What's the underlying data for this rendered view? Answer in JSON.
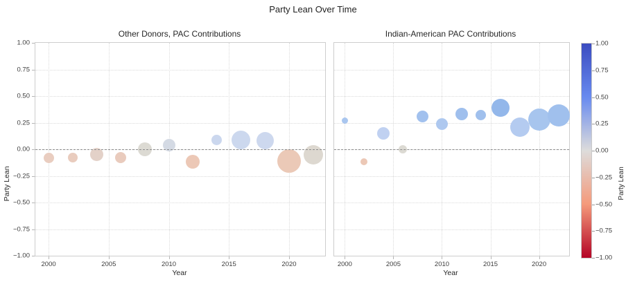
{
  "figure": {
    "title": "Party Lean Over Time"
  },
  "chart_data": [
    {
      "type": "scatter",
      "title": "Other Donors, PAC Contributions",
      "xlabel": "Year",
      "ylabel": "Party Lean",
      "xlim": [
        1998.9,
        2023.0
      ],
      "ylim": [
        -1.0,
        1.0
      ],
      "grid": true,
      "legend": "none",
      "zero_line_y": 0,
      "xticks": {
        "values": [
          2000,
          2005,
          2010,
          2015,
          2020
        ],
        "labels": [
          "2000",
          "2005",
          "2010",
          "2015",
          "2020"
        ]
      },
      "yticks": {
        "values": [
          1.0,
          0.75,
          0.5,
          0.25,
          0.0,
          -0.25,
          -0.5,
          -0.75,
          -1.0
        ],
        "labels": [
          "1.00",
          "0.75",
          "0.50",
          "0.25",
          "0.00",
          "−0.25",
          "−0.50",
          "−0.75",
          "−1.00"
        ]
      },
      "show_ytick_labels": true,
      "points": [
        {
          "x": 2000,
          "y": -0.08,
          "r": 7.5,
          "color": "#e9cdc0"
        },
        {
          "x": 2002,
          "y": -0.08,
          "r": 7.0,
          "color": "#e9ccbe"
        },
        {
          "x": 2004,
          "y": -0.05,
          "r": 9.5,
          "color": "#e3d1c8"
        },
        {
          "x": 2006,
          "y": -0.08,
          "r": 8.0,
          "color": "#e9cbbd"
        },
        {
          "x": 2008,
          "y": 0.0,
          "r": 10.0,
          "color": "#dcdad3"
        },
        {
          "x": 2010,
          "y": 0.04,
          "r": 9.0,
          "color": "#d4dae4"
        },
        {
          "x": 2012,
          "y": -0.12,
          "r": 10.0,
          "color": "#ecc8b6"
        },
        {
          "x": 2014,
          "y": 0.09,
          "r": 7.5,
          "color": "#cbd7ee"
        },
        {
          "x": 2016,
          "y": 0.09,
          "r": 13.5,
          "color": "#ccd8ee"
        },
        {
          "x": 2018,
          "y": 0.08,
          "r": 12.5,
          "color": "#cdd8ee"
        },
        {
          "x": 2020,
          "y": -0.11,
          "r": 17.0,
          "color": "#ebc9b7"
        },
        {
          "x": 2022,
          "y": -0.05,
          "r": 14.0,
          "color": "#ddd8d0"
        }
      ]
    },
    {
      "type": "scatter",
      "title": "Indian-American PAC Contributions",
      "xlabel": "Year",
      "ylabel": "",
      "xlim": [
        1998.9,
        2023.1
      ],
      "ylim": [
        -1.0,
        1.0
      ],
      "grid": true,
      "legend": "none",
      "zero_line_y": 0,
      "xticks": {
        "values": [
          2000,
          2005,
          2010,
          2015,
          2020
        ],
        "labels": [
          "2000",
          "2005",
          "2010",
          "2015",
          "2020"
        ]
      },
      "yticks": {
        "values": [
          1.0,
          0.75,
          0.5,
          0.25,
          0.0,
          -0.25,
          -0.5,
          -0.75,
          -1.0
        ],
        "labels": [
          "1.00",
          "0.75",
          "0.50",
          "0.25",
          "0.00",
          "−0.25",
          "−0.50",
          "−0.75",
          "−1.00"
        ]
      },
      "show_ytick_labels": false,
      "points": [
        {
          "x": 2000,
          "y": 0.27,
          "r": 4.5,
          "color": "#a9c6ef"
        },
        {
          "x": 2002,
          "y": -0.12,
          "r": 5.0,
          "color": "#ecc8b6"
        },
        {
          "x": 2004,
          "y": 0.15,
          "r": 9.0,
          "color": "#c0d1f1"
        },
        {
          "x": 2006,
          "y": 0.0,
          "r": 6.0,
          "color": "#dcdad3"
        },
        {
          "x": 2008,
          "y": 0.31,
          "r": 8.5,
          "color": "#a2c1ee"
        },
        {
          "x": 2010,
          "y": 0.24,
          "r": 8.5,
          "color": "#aec8ef"
        },
        {
          "x": 2012,
          "y": 0.33,
          "r": 9.0,
          "color": "#9fbfed"
        },
        {
          "x": 2014,
          "y": 0.32,
          "r": 7.5,
          "color": "#a0c0ed"
        },
        {
          "x": 2016,
          "y": 0.39,
          "r": 13.0,
          "color": "#93b7ea"
        },
        {
          "x": 2018,
          "y": 0.21,
          "r": 14.0,
          "color": "#b4cbf0"
        },
        {
          "x": 2020,
          "y": 0.28,
          "r": 16.0,
          "color": "#a7c5ee"
        },
        {
          "x": 2022,
          "y": 0.32,
          "r": 16.0,
          "color": "#a0c0ed"
        }
      ]
    }
  ],
  "colorbar": {
    "label": "Party Lean",
    "vmin": -1.0,
    "vmax": 1.0,
    "tick_values": [
      1.0,
      0.75,
      0.5,
      0.25,
      0.0,
      -0.25,
      -0.5,
      -0.75,
      -1.0
    ],
    "tick_labels": [
      "1.00",
      "0.75",
      "0.50",
      "0.25",
      "0.00",
      "−0.25",
      "−0.50",
      "−0.75",
      "−1.00"
    ],
    "gradient_top_to_bottom": [
      "#3b4cc0",
      "#688aef",
      "#dddcdb",
      "#f49a7b",
      "#b40426"
    ]
  }
}
